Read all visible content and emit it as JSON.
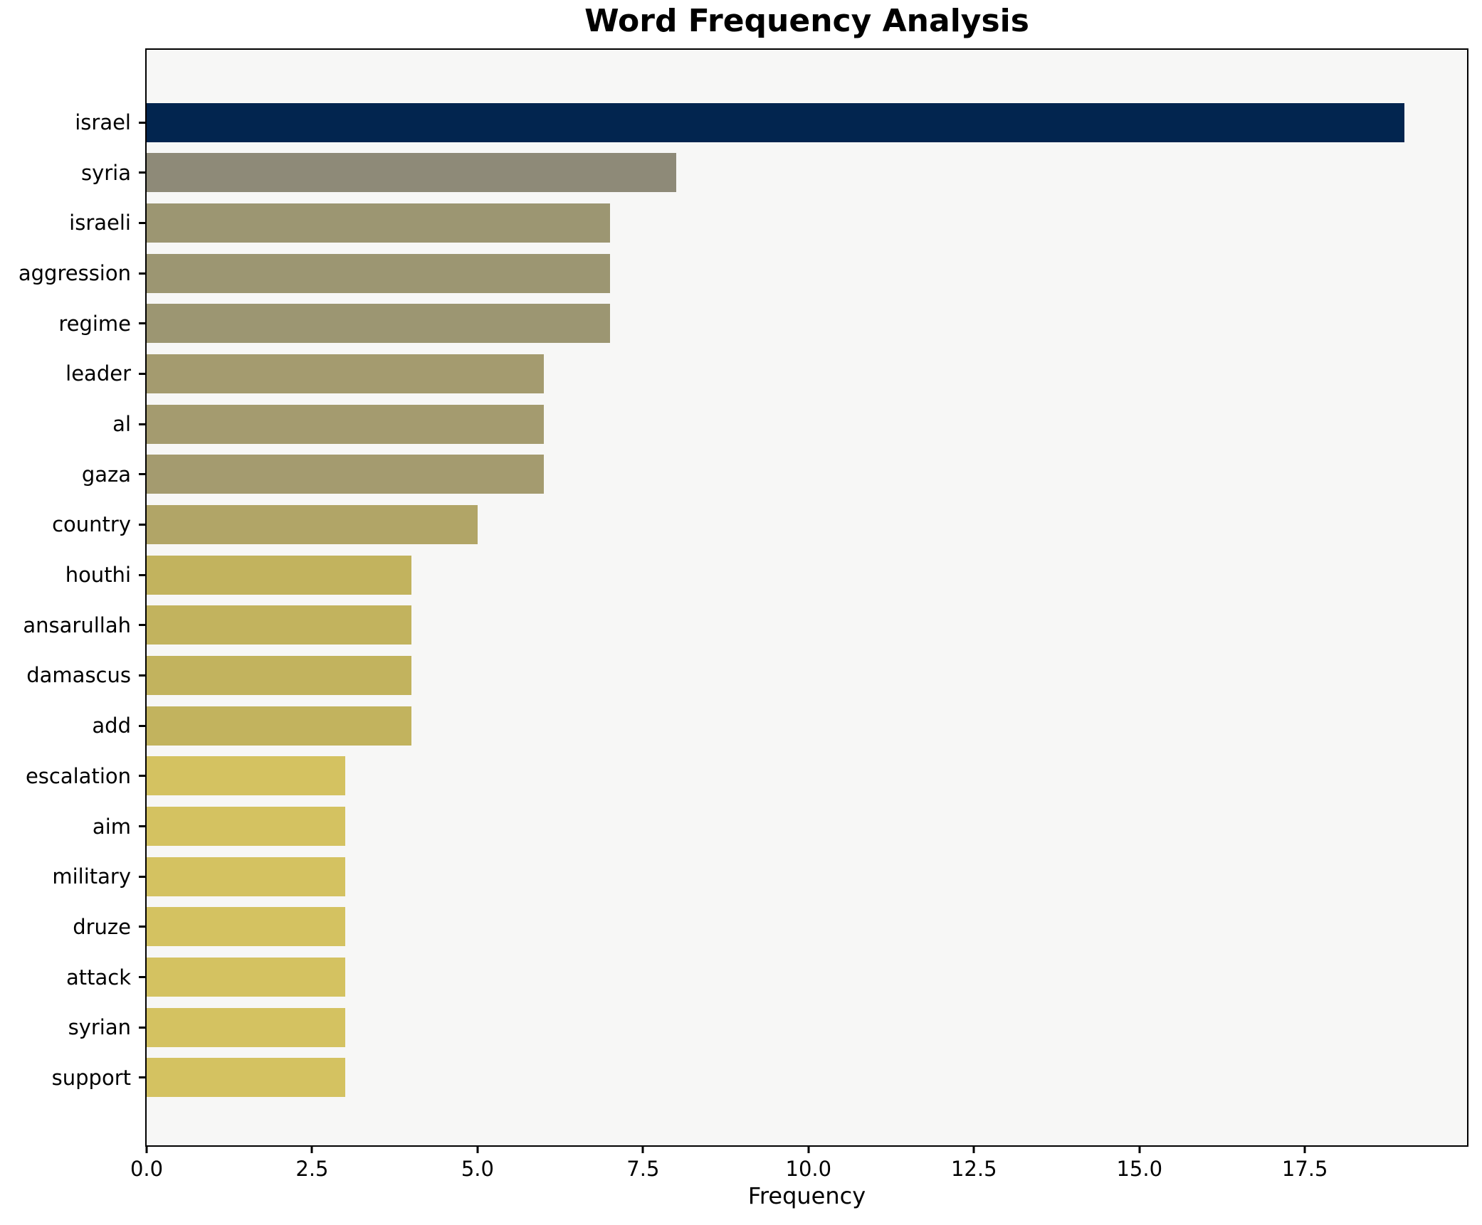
{
  "title": "Word Frequency Analysis",
  "chart_data": {
    "type": "bar",
    "orientation": "horizontal",
    "title": "Word Frequency Analysis",
    "xlabel": "Frequency",
    "ylabel": "",
    "categories": [
      "israel",
      "syria",
      "israeli",
      "aggression",
      "regime",
      "leader",
      "al",
      "gaza",
      "country",
      "houthi",
      "ansarullah",
      "damascus",
      "add",
      "escalation",
      "aim",
      "military",
      "druze",
      "attack",
      "syrian",
      "support"
    ],
    "values": [
      19,
      8,
      7,
      7,
      7,
      6,
      6,
      6,
      5,
      4,
      4,
      4,
      4,
      3,
      3,
      3,
      3,
      3,
      3,
      3
    ],
    "bar_colors": [
      "#02254f",
      "#8e8a78",
      "#9c9672",
      "#9c9672",
      "#9c9672",
      "#a49b6f",
      "#a49b6f",
      "#a49b6f",
      "#b1a567",
      "#c2b35e",
      "#c2b35e",
      "#c2b35e",
      "#c2b35e",
      "#d4c261",
      "#d4c261",
      "#d4c261",
      "#d4c261",
      "#d4c261",
      "#d4c261",
      "#d4c261"
    ],
    "xlim": [
      0,
      19.95
    ],
    "xticks": [
      0.0,
      2.5,
      5.0,
      7.5,
      10.0,
      12.5,
      15.0,
      17.5
    ],
    "xtick_labels": [
      "0.0",
      "2.5",
      "5.0",
      "7.5",
      "10.0",
      "12.5",
      "15.0",
      "17.5"
    ],
    "grid": false,
    "legend": false,
    "plot_bg": "#f7f7f6",
    "figure_bg": "#ffffff",
    "colormap_note": "cividis-style gradient from dark navy (highest frequency) to khaki yellow (lowest)"
  }
}
